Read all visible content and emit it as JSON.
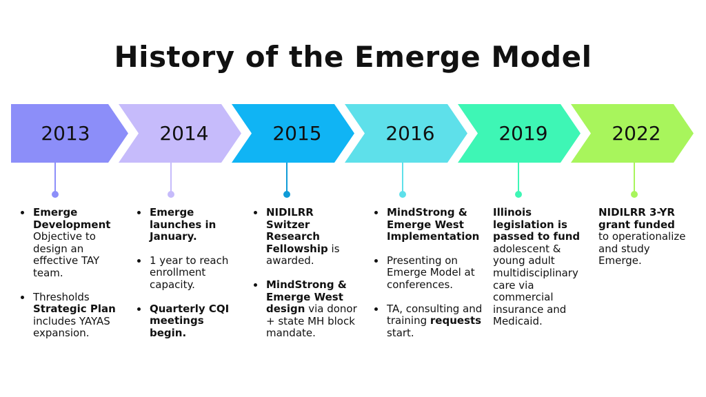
{
  "title": "History of the Emerge Model",
  "colors": [
    "#8c8ef9",
    "#c6bbfb",
    "#10b4f4",
    "#5ee0ea",
    "#3ef6b5",
    "#a8f55c"
  ],
  "dot_colors": [
    "#8c8ef9",
    "#c6bbfb",
    "#0f9bd7",
    "#5ee0ea",
    "#3ef6b5",
    "#a8f55c"
  ],
  "years": [
    "2013",
    "2014",
    "2015",
    "2016",
    "2019",
    "2022"
  ],
  "col2013": {
    "b1_bold": "Emerge Development",
    "b1_text": "Objective to design an effective TAY team.",
    "b2_text1": "Thresholds",
    "b2_bold": "Strategic Plan",
    "b2_text2": "includes YAYAS expansion."
  },
  "col2014": {
    "b1_bold": "Emerge launches in January.",
    "b2_text": "1 year to reach enrollment capacity.",
    "b3_bold": "Quarterly CQI meetings begin."
  },
  "col2015": {
    "b1_bold": "NIDILRR Switzer Research Fellowship",
    "b1_text": "is awarded.",
    "b2_bold": "MindStrong & Emerge West design",
    "b2_text": "via donor + state MH block mandate."
  },
  "col2016": {
    "b1_bold": "MindStrong & Emerge West Implementation",
    "b2_text": "Presenting on Emerge Model at conferences.",
    "b3_text": "TA, consulting and training",
    "b3_bold": "requests",
    "b3_text2": "start."
  },
  "col2019": {
    "bold": "Illinois legislation is passed to fund",
    "text": "adolescent & young adult multidisciplinary care via commercial insurance and Medicaid."
  },
  "col2022": {
    "bold": "NIDILRR 3-YR grant funded",
    "text": "to operationalize and study Emerge."
  }
}
